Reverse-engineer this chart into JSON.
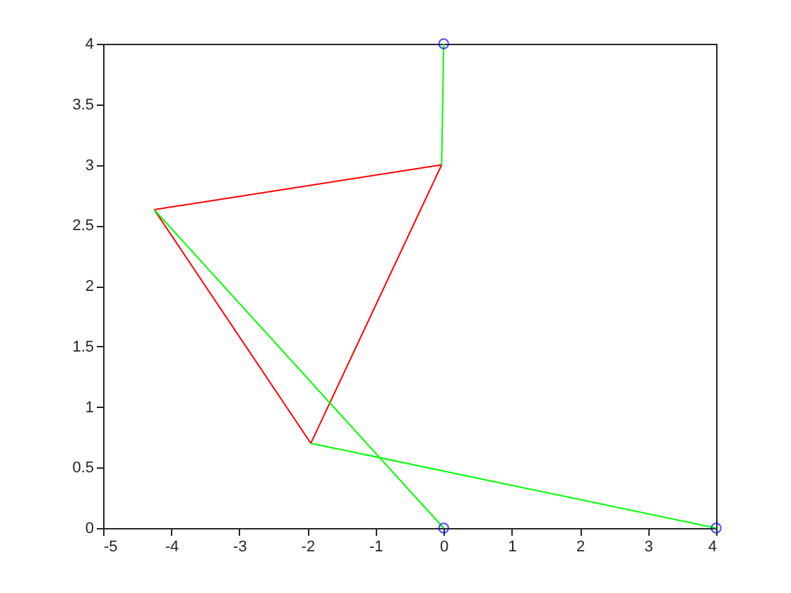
{
  "chart_data": {
    "type": "line",
    "xlim": [
      -5,
      4
    ],
    "ylim": [
      0,
      4
    ],
    "xticks": [
      -5,
      -4,
      -3,
      -2,
      -1,
      0,
      1,
      2,
      3,
      4
    ],
    "yticks": [
      0,
      0.5,
      1,
      1.5,
      2,
      2.5,
      3,
      3.5,
      4
    ],
    "grid": false,
    "series": [
      {
        "color": "#ff0000",
        "x": [
          -0.03,
          -4.25
        ],
        "values": [
          3,
          2.63
        ],
        "marker": "none"
      },
      {
        "color": "#ff0000",
        "x": [
          -4.25,
          -1.95
        ],
        "values": [
          2.63,
          0.7
        ],
        "marker": "none"
      },
      {
        "color": "#ff0000",
        "x": [
          -1.95,
          -0.03
        ],
        "values": [
          0.7,
          3
        ],
        "marker": "none"
      },
      {
        "color": "#00ff00",
        "x": [
          0,
          -0.03
        ],
        "values": [
          4,
          3
        ],
        "marker": "none"
      },
      {
        "color": "#00ff00",
        "x": [
          -4.25,
          0
        ],
        "values": [
          2.63,
          0
        ],
        "marker": "none"
      },
      {
        "color": "#00ff00",
        "x": [
          -1.95,
          4
        ],
        "values": [
          0.7,
          0
        ],
        "marker": "none"
      },
      {
        "type": "scatter",
        "color": "#0000ff",
        "x": [
          0,
          0,
          4
        ],
        "values": [
          4,
          0,
          0
        ],
        "marker": "circle"
      }
    ]
  }
}
